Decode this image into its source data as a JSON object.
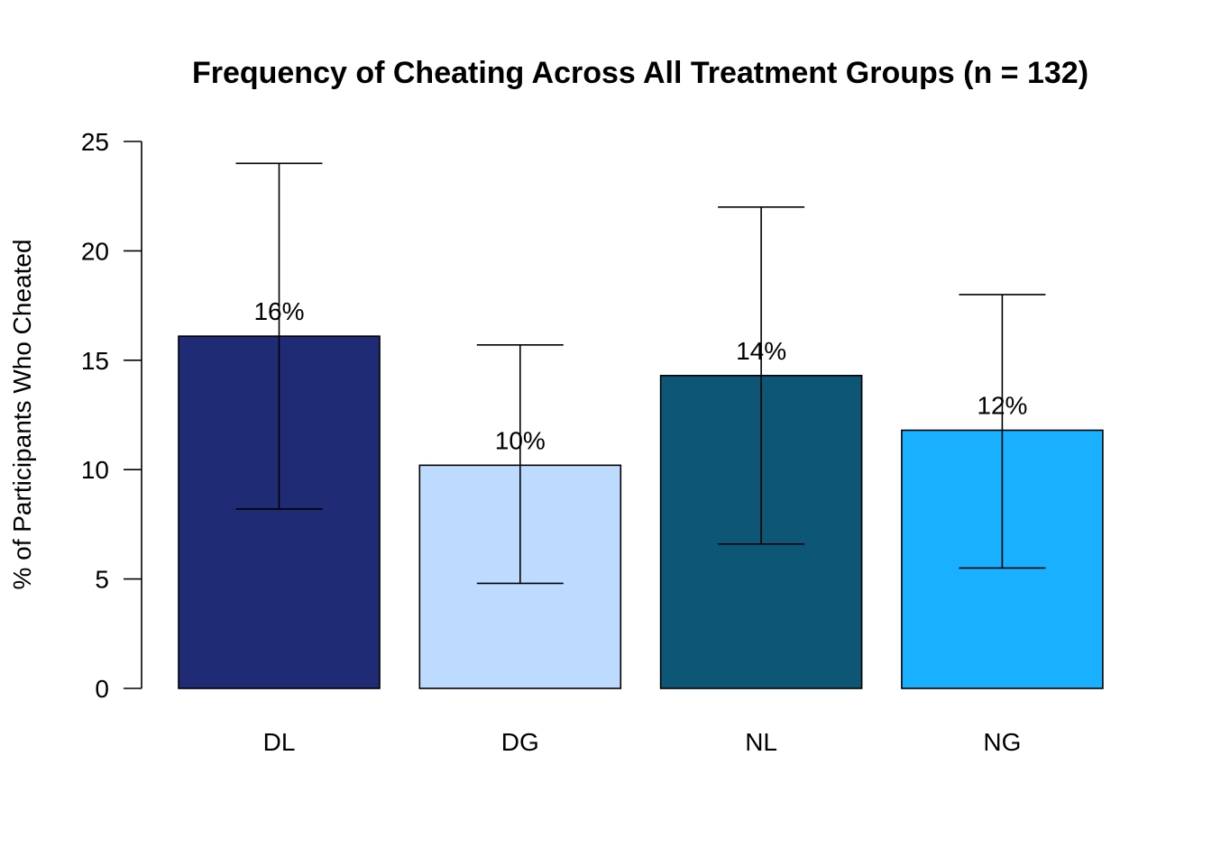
{
  "chart_data": {
    "type": "bar",
    "title": "Frequency of Cheating Across All Treatment Groups (n = 132)",
    "ylabel": "% of Participants Who Cheated",
    "xlabel": "",
    "ylim": [
      0,
      25
    ],
    "yticks": [
      0,
      5,
      10,
      15,
      20,
      25
    ],
    "categories": [
      "DL",
      "DG",
      "NL",
      "NG"
    ],
    "values": [
      16.1,
      10.2,
      14.3,
      11.8
    ],
    "error_low": [
      8.2,
      4.8,
      6.6,
      5.5
    ],
    "error_high": [
      24.0,
      15.7,
      22.0,
      18.0
    ],
    "data_labels": [
      "16%",
      "10%",
      "14%",
      "12%"
    ],
    "colors": [
      "#1F2C75",
      "#BCDBFF",
      "#0D5675",
      "#18B0FF"
    ],
    "grid": false,
    "legend": "none"
  }
}
